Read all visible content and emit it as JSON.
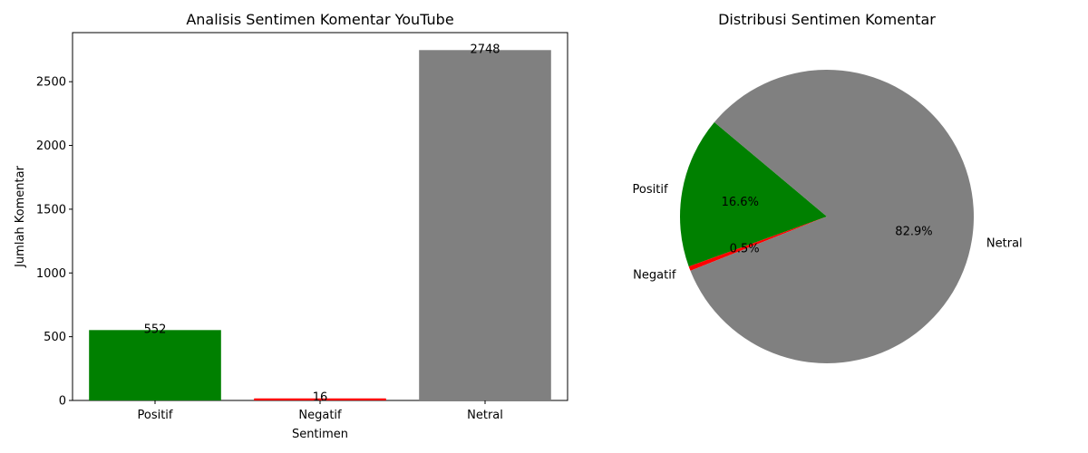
{
  "chart_data": [
    {
      "type": "bar",
      "title": "Analisis Sentimen Komentar YouTube",
      "xlabel": "Sentimen",
      "ylabel": "Jumlah Komentar",
      "categories": [
        "Positif",
        "Negatif",
        "Netral"
      ],
      "values": [
        552,
        16,
        2748
      ],
      "value_labels": [
        "552",
        "16",
        "2748"
      ],
      "colors": [
        "#008000",
        "#ff0000",
        "#808080"
      ],
      "ylim": [
        0,
        2885
      ],
      "yticks": [
        0,
        500,
        1000,
        1500,
        2000,
        2500
      ],
      "ytick_labels": [
        "0",
        "500",
        "1000",
        "1500",
        "2000",
        "2500"
      ],
      "grid": false
    },
    {
      "type": "pie",
      "title": "Distribusi Sentimen Komentar",
      "labels": [
        "Positif",
        "Negatif",
        "Netral"
      ],
      "values": [
        552,
        16,
        2748
      ],
      "percent_labels": [
        "16.6%",
        "0.5%",
        "82.9%"
      ],
      "colors": [
        "#008000",
        "#ff0000",
        "#808080"
      ],
      "start_angle_deg": 140
    }
  ]
}
